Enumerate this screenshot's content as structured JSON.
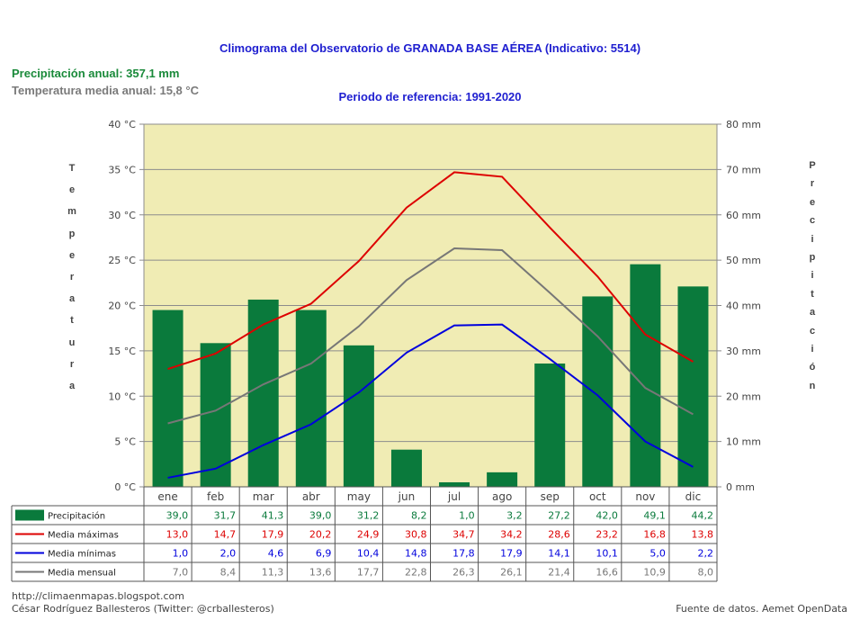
{
  "header": {
    "title": "Climograma del Observatorio de GRANADA BASE AÉREA (Indicativo: 5514)",
    "subtitle": "Periodo de referencia: 1991-2020",
    "annual_precipitation": "Precipitación anual: 357,1 mm",
    "annual_temperature": "Temperatura media anual: 15,8 °C"
  },
  "axis_titles": {
    "left": [
      "T",
      "e",
      "m",
      "p",
      "e",
      "r",
      "a",
      "t",
      "u",
      "r",
      "a"
    ],
    "right": [
      "P",
      "r",
      "e",
      "c",
      "i",
      "p",
      "i",
      "t",
      "a",
      "c",
      "i",
      "ó",
      "n"
    ]
  },
  "footer": {
    "blog": "http://climaenmapas.blogspot.com",
    "author": "César Rodríguez Ballesteros (Twitter: @crballesteros)",
    "source": "Fuente de datos. Aemet OpenData"
  },
  "colors": {
    "plot_background": "#f0ecb4",
    "precipitation": "#0a7a3c",
    "max_temp": "#dd0000",
    "min_temp": "#0000dd",
    "mean_temp": "#777777"
  },
  "chart_data": {
    "type": "bar",
    "categories": [
      "ene",
      "feb",
      "mar",
      "abr",
      "may",
      "jun",
      "jul",
      "ago",
      "sep",
      "oct",
      "nov",
      "dic"
    ],
    "y_left": {
      "ylim": [
        0,
        40
      ],
      "ticks": [
        "0 °C",
        "5 °C",
        "10 °C",
        "15 °C",
        "20 °C",
        "25 °C",
        "30 °C",
        "35 °C",
        "40 °C"
      ]
    },
    "y_right": {
      "ylim": [
        0,
        80
      ],
      "ticks": [
        "0 mm",
        "10 mm",
        "20 mm",
        "30 mm",
        "40 mm",
        "50 mm",
        "60 mm",
        "70 mm",
        "80 mm"
      ]
    },
    "grid": true,
    "series": [
      {
        "name": "Precipitación",
        "type": "bar",
        "axis": "right",
        "values": [
          39.0,
          31.7,
          41.3,
          39.0,
          31.2,
          8.2,
          1.0,
          3.2,
          27.2,
          42.0,
          49.1,
          44.2
        ],
        "labels": [
          "39,0",
          "31,7",
          "41,3",
          "39,0",
          "31,2",
          "8,2",
          "1,0",
          "3,2",
          "27,2",
          "42,0",
          "49,1",
          "44,2"
        ]
      },
      {
        "name": "Media máximas",
        "type": "line",
        "axis": "left",
        "values": [
          13.0,
          14.7,
          17.9,
          20.2,
          24.9,
          30.8,
          34.7,
          34.2,
          28.6,
          23.2,
          16.8,
          13.8
        ],
        "labels": [
          "13,0",
          "14,7",
          "17,9",
          "20,2",
          "24,9",
          "30,8",
          "34,7",
          "34,2",
          "28,6",
          "23,2",
          "16,8",
          "13,8"
        ]
      },
      {
        "name": "Media mínimas",
        "type": "line",
        "axis": "left",
        "values": [
          1.0,
          2.0,
          4.6,
          6.9,
          10.4,
          14.8,
          17.8,
          17.9,
          14.1,
          10.1,
          5.0,
          2.2
        ],
        "labels": [
          "1,0",
          "2,0",
          "4,6",
          "6,9",
          "10,4",
          "14,8",
          "17,8",
          "17,9",
          "14,1",
          "10,1",
          "5,0",
          "2,2"
        ]
      },
      {
        "name": "Media mensual",
        "type": "line",
        "axis": "left",
        "values": [
          7.0,
          8.4,
          11.3,
          13.6,
          17.7,
          22.8,
          26.3,
          26.1,
          21.4,
          16.6,
          10.9,
          8.0
        ],
        "labels": [
          "7,0",
          "8,4",
          "11,3",
          "13,6",
          "17,7",
          "22,8",
          "26,3",
          "26,1",
          "21,4",
          "16,6",
          "10,9",
          "8,0"
        ]
      }
    ]
  }
}
